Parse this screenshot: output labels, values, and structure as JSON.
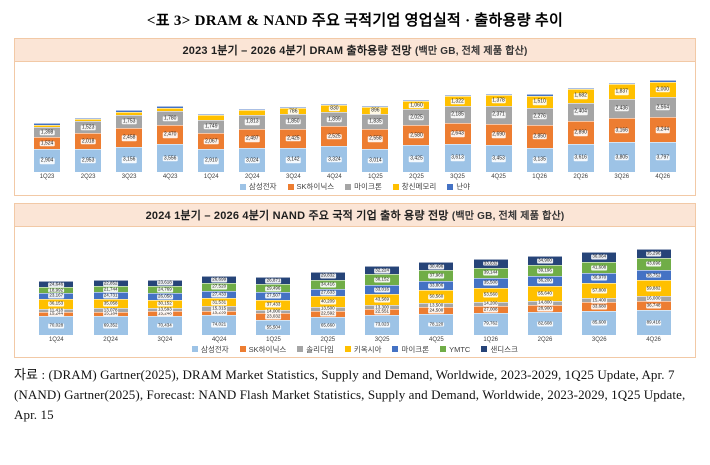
{
  "page": {
    "title": "<표 3> DRAM & NAND 주요 국적기업 영업실적 · 출하용량 추이"
  },
  "source_note": {
    "text": "자료 : (DRAM) Gartner(2025), DRAM Market Statistics, Supply and Demand, Worldwide, 2023-2029, 1Q25 Update, Apr. 7 (NAND) Gartner(2025), Forecast: NAND Flash Market Statistics, Supply and Demand, Worldwide, 2023-2029, 1Q25 Update, Apr. 15"
  },
  "colors": {
    "chart_header_bg": "#FBE5D6",
    "chart_border": "#f2c9a6",
    "samsung": "#9DC3E6",
    "skhynix": "#ED7D31",
    "gray_series": "#A5A5A5",
    "yellow_series": "#FFC000",
    "blue_series": "#4472C4",
    "green_series": "#70AD47",
    "navy_series": "#264478"
  },
  "chart_data": [
    {
      "type": "bar",
      "stacked": true,
      "title": "2023 1분기 – 2026 4분기 DRAM 출하용량 전망",
      "unit_note": "(백만 GB, 전체 제품 합산)",
      "legend_position": "bottom",
      "grid": false,
      "categories": [
        "1Q23",
        "2Q23",
        "3Q23",
        "4Q23",
        "1Q24",
        "2Q24",
        "3Q24",
        "4Q24",
        "1Q25",
        "2Q25",
        "3Q25",
        "4Q25",
        "1Q26",
        "2Q26",
        "3Q26",
        "4Q26"
      ],
      "series": [
        {
          "key": "samsung",
          "name": "삼성전자",
          "color": "#9DC3E6",
          "values": [
            2904,
            2953,
            3156,
            3556,
            2910,
            3024,
            3142,
            3324,
            3014,
            3425,
            3613,
            3453,
            3135,
            3616,
            3805,
            3797
          ]
        },
        {
          "key": "skhynix",
          "name": "SK하이닉스",
          "color": "#ED7D31",
          "values": [
            1524,
            2018,
            2458,
            2470,
            2067,
            2497,
            2425,
            2525,
            2558,
            2580,
            2643,
            2690,
            2850,
            2890,
            3166,
            3244
          ]
        },
        {
          "key": "micron",
          "name": "마이크론",
          "color": "#A5A5A5",
          "values": [
            1398,
            1523,
            1753,
            1780,
            1749,
            1813,
            1850,
            1899,
            1835,
            2025,
            2185,
            2371,
            2276,
            2404,
            2436,
            2564
          ]
        },
        {
          "key": "cxmt",
          "name": "창신메모리",
          "color": "#FFC000",
          "values": [
            260,
            300,
            380,
            460,
            540,
            660,
            786,
            830,
            896,
            1060,
            1322,
            1378,
            1510,
            1682,
            1837,
            2000
          ]
        },
        {
          "key": "nanya",
          "name": "난야",
          "color": "#4472C4",
          "values": [
            150,
            148,
            155,
            160,
            152,
            158,
            162,
            168,
            160,
            166,
            172,
            178,
            176,
            182,
            188,
            195
          ]
        }
      ]
    },
    {
      "type": "bar",
      "stacked": true,
      "title": "2024 1분기 – 2026 4분기 NAND 주요 국적 기업 출하 용량 전망",
      "unit_note": "(백만 GB, 전체 제품 합산)",
      "legend_position": "bottom",
      "grid": false,
      "categories": [
        "1Q24",
        "2Q24",
        "3Q24",
        "4Q24",
        "1Q25",
        "2Q25",
        "3Q25",
        "4Q25",
        "1Q26",
        "2Q26",
        "3Q26",
        "4Q26"
      ],
      "series": [
        {
          "key": "samsung",
          "name": "삼성전자",
          "color": "#9DC3E6",
          "values": [
            70028,
            69352,
            70434,
            74021,
            55504,
            65660,
            73023,
            78120,
            79762,
            82608,
            85600,
            89416
          ]
        },
        {
          "key": "skhynix",
          "name": "SK하이닉스",
          "color": "#ED7D31",
          "values": [
            15244,
            15184,
            15248,
            15235,
            23032,
            22592,
            22551,
            24500,
            27008,
            28900,
            33680,
            36748
          ]
        },
        {
          "key": "solidigm",
          "name": "솔리다임",
          "color": "#A5A5A5",
          "values": [
            11418,
            13078,
            13593,
            15315,
            14000,
            13500,
            13300,
            13500,
            14200,
            14800,
            15400,
            16000
          ]
        },
        {
          "key": "kioxia",
          "name": "키옥시아",
          "color": "#FFC000",
          "values": [
            36153,
            35058,
            30152,
            31531,
            37433,
            40209,
            43569,
            50560,
            53560,
            55640,
            57800,
            59882
          ]
        },
        {
          "key": "micron",
          "name": "마이크론",
          "color": "#4472C4",
          "values": [
            23167,
            24731,
            26058,
            27433,
            27507,
            27633,
            33016,
            33806,
            35500,
            36200,
            36970,
            38752
          ]
        },
        {
          "key": "ymtc",
          "name": "YMTC",
          "color": "#70AD47",
          "values": [
            18992,
            21744,
            24769,
            27520,
            29496,
            34416,
            38152,
            37960,
            39144,
            39196,
            41608,
            43696
          ]
        },
        {
          "key": "sandisk",
          "name": "샌디스크",
          "color": "#264478",
          "values": [
            24646,
            22852,
            23618,
            26699,
            26871,
            29832,
            32224,
            30496,
            33632,
            34900,
            36064,
            35296
          ]
        }
      ]
    }
  ]
}
